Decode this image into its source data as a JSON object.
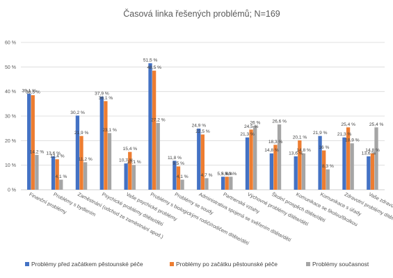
{
  "chart_data": {
    "type": "bar",
    "title": "Časová linka řešených problémů; N=169",
    "xlabel": "",
    "ylabel": "",
    "ylim": [
      0,
      60
    ],
    "yticks": [
      "0 %",
      "10 %",
      "20 %",
      "30 %",
      "40 %",
      "50 %",
      "60 %"
    ],
    "grid": true,
    "legend_position": "bottom",
    "categories": [
      "Finanční problémy",
      "Problémy s bydlením",
      "Zaměstnání (odchod ze zaměstnání apod.)",
      "Psychické problémy dítěte/dětí",
      "Vaše psychické problémy",
      "Problémy s biologickými rodiči/rodičem dítěte/dětí",
      "Problémy se soudy",
      "Administrativa spojená se svěřením dítěte/dětí",
      "Partnerské vztahy",
      "Výchovné problémy dítěte/dětí",
      "Školní prospěch dítěte/dětí",
      "Komunikace se školou/školkou",
      "Komunikace s úřady",
      "Zdravotní problémy dítěte/dětí",
      "Vaše zdravotní problémy"
    ],
    "series": [
      {
        "name": "Problémy před začátkem pěstounské péče",
        "color": "#4472C4",
        "values": [
          39.1,
          13.6,
          30.2,
          37.9,
          10.7,
          51.5,
          11.8,
          24.9,
          5.3,
          21.3,
          14.8,
          13.6,
          21.9,
          21.3,
          13.6
        ],
        "labels": [
          "39,1 %",
          "13,6 %",
          "30,2 %",
          "37,9 %",
          "10,7 %",
          "51,5 %",
          "11,8 %",
          "24,9 %",
          "5,3 %",
          "21,3 %",
          "14,8 %",
          "13,6 %",
          "21,9 %",
          "21,3 %",
          "13,6 %"
        ]
      },
      {
        "name": "Problémy po začátku pěstounské péče",
        "color": "#ED7D31",
        "values": [
          38.5,
          12.4,
          21.9,
          36.1,
          15.4,
          48.5,
          9.5,
          22.5,
          5.3,
          24.5,
          18.3,
          20.1,
          16.0,
          25.4,
          14.8
        ],
        "labels": [
          "38,5 %",
          "12,4 %",
          "21,9 %",
          "36,1 %",
          "15,4 %",
          "48,5 %",
          "9,5 %",
          "22,5 %",
          "5,3 %",
          "24,5 %",
          "18,3 %",
          "20,1 %",
          "16 %",
          "25,4 %",
          "14,8 %"
        ]
      },
      {
        "name": "Problémy současnost",
        "color": "#A5A5A5",
        "values": [
          14.2,
          4.1,
          11.2,
          23.1,
          10.1,
          27.2,
          4.1,
          4.7,
          5.3,
          26.0,
          26.6,
          14.8,
          8.3,
          18.9,
          25.4
        ],
        "labels": [
          "14,2 %",
          "4,1 %",
          "11,2 %",
          "23,1 %",
          "10,1 %",
          "27,2 %",
          "4,1 %",
          "4,7 %",
          "5,3 %",
          "26 %",
          "26,6 %",
          "14,8 %",
          "8,3 %",
          "18,9 %",
          "25,4 %"
        ]
      }
    ]
  }
}
